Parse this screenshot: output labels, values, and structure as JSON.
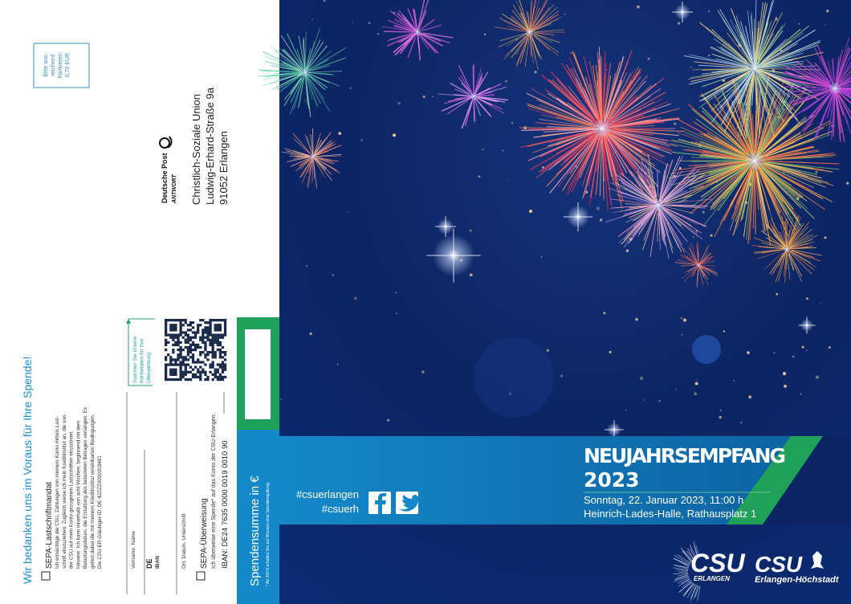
{
  "stamp": {
    "lines": [
      "Bitte aus-",
      "reichend",
      "frankieren:",
      "0,70 EUR"
    ]
  },
  "reply": {
    "carrier": "Deutsche Post",
    "service": "ANTWORT",
    "address": [
      "Christlich-Soziale Union",
      "Ludwig-Erhard-Straße 9a",
      "91052 Erlangen"
    ]
  },
  "donation": {
    "thanks": "Wir bedanken uns im Voraus für Ihre Spende!",
    "mandate_title": "SEPA-Lastschriftmandat",
    "mandate_text": [
      "Ich ermächtige die CSU, Zahlungen von meinem Konto mittels Last-",
      "schrift einzuziehen. Zugleich weise ich mein Kreditinstitut an, die von",
      "der CSU auf mein Konto gezogenen Lastschriften einzulösen.",
      "Hinweis: Ich kann innerhalb von acht Wochen, beginnend mit dem",
      "Belastungsdatum, die Erstattung des belasteten Betrages verlangen. Es",
      "gelten dabei die mit meinem Kreditinstitut vereinbarten Bedingungen.",
      "Die CSU-ER-Gläubiger-ID: DE 42ZZZ0000003481"
    ],
    "name_label": "Vorname, Name",
    "iban_prefix": "DE",
    "iban_label": "IBAN",
    "signature_label": "Ort, Datum, Unterschrift",
    "transfer_title": "SEPA-Überweisung",
    "transfer_text": "Ich überweise eine Spende* auf das Konto der CSU-Erlangen:",
    "transfer_iban": "IBAN: DE24 7635 0000 0019 0010 90",
    "scan_hint": [
      "Scannen Sie unsere",
      "Kontodaten für Ihre",
      "Überweisung:"
    ],
    "sum_label": "Spendensumme in €",
    "footnote": "* Ab 200 € erhalten Sie auf Wunsch eine Spendenquittung."
  },
  "event": {
    "title": "NEUJAHRSEMPFANG",
    "year": "2023",
    "date": "Sonntag, 22. Januar 2023, 11:00 h",
    "venue": "Heinrich-Lades-Halle, Rathausplatz 1",
    "hashtags": [
      "#csuerlangen",
      "#csuerh"
    ]
  },
  "logos": [
    {
      "name": "CSU",
      "sub": "ERLANGEN"
    },
    {
      "name": "CSU",
      "sub": "Erlangen-Höchstadt"
    }
  ]
}
